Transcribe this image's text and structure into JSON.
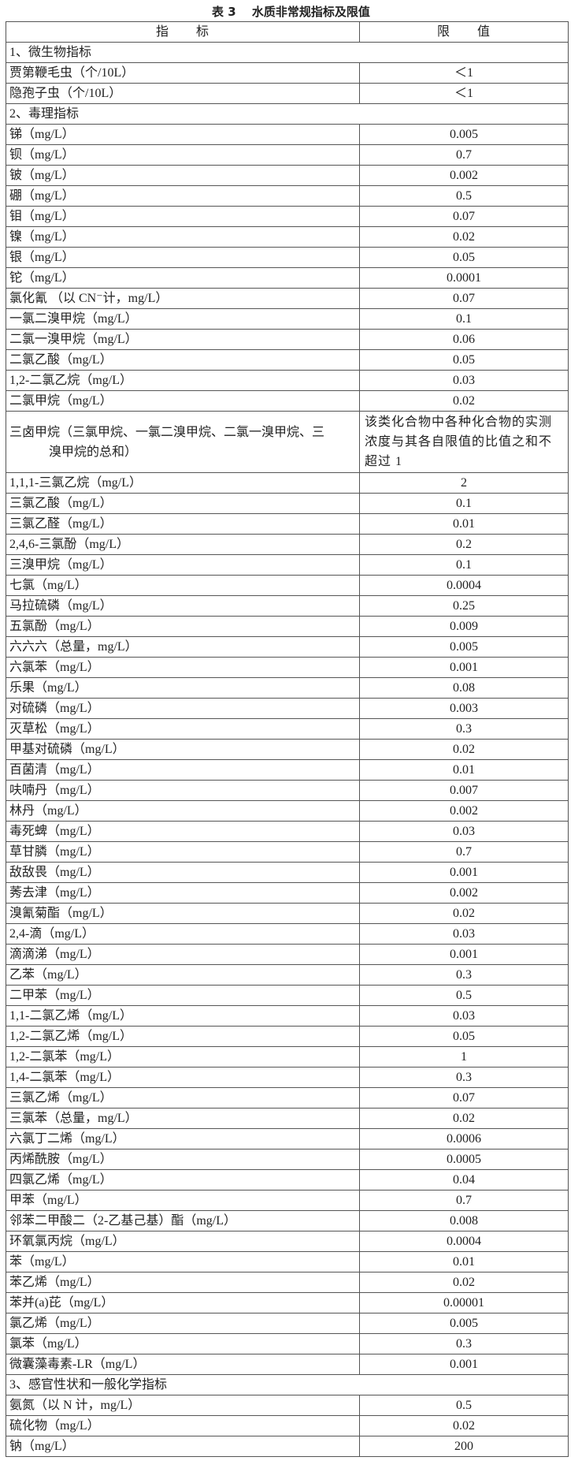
{
  "title": "表 3　 水质非常规指标及限值",
  "header": {
    "indicator": "指　　标",
    "limit": "限　　值"
  },
  "rows": [
    {
      "section": "1、微生物指标"
    },
    {
      "name": "贾第鞭毛虫（个/10L）",
      "value": "＜1"
    },
    {
      "name": "隐孢子虫（个/10L）",
      "value": "＜1"
    },
    {
      "section": "2、毒理指标"
    },
    {
      "name": "锑（mg/L）",
      "value": "0.005"
    },
    {
      "name": "钡（mg/L）",
      "value": "0.7"
    },
    {
      "name": "铍（mg/L）",
      "value": "0.002"
    },
    {
      "name": "硼（mg/L）",
      "value": "0.5"
    },
    {
      "name": "钼（mg/L）",
      "value": "0.07"
    },
    {
      "name": "镍（mg/L）",
      "value": "0.02"
    },
    {
      "name": "银（mg/L）",
      "value": "0.05"
    },
    {
      "name": "铊（mg/L）",
      "value": "0.0001"
    },
    {
      "name": "氯化氰 （以 CN⁻计，mg/L）",
      "value": "0.07"
    },
    {
      "name": "一氯二溴甲烷（mg/L）",
      "value": "0.1"
    },
    {
      "name": "二氯一溴甲烷（mg/L）",
      "value": "0.06"
    },
    {
      "name": "二氯乙酸（mg/L）",
      "value": "0.05"
    },
    {
      "name": "1,2-二氯乙烷（mg/L）",
      "value": "0.03"
    },
    {
      "name": "二氯甲烷（mg/L）",
      "value": "0.02"
    },
    {
      "name": "三卤甲烷（三氯甲烷、一氯二溴甲烷、二氯一溴甲烷、三",
      "name2": "溴甲烷的总和）",
      "value": "该类化合物中各种化合物的实测浓度与其各自限值的比值之和不超过 1"
    },
    {
      "name": "1,1,1-三氯乙烷（mg/L）",
      "value": "2"
    },
    {
      "name": "三氯乙酸（mg/L）",
      "value": "0.1"
    },
    {
      "name": "三氯乙醛（mg/L）",
      "value": "0.01"
    },
    {
      "name": "2,4,6-三氯酚（mg/L）",
      "value": "0.2"
    },
    {
      "name": "三溴甲烷（mg/L）",
      "value": "0.1"
    },
    {
      "name": "七氯（mg/L）",
      "value": "0.0004"
    },
    {
      "name": "马拉硫磷（mg/L）",
      "value": "0.25"
    },
    {
      "name": "五氯酚（mg/L）",
      "value": "0.009"
    },
    {
      "name": "六六六（总量，mg/L）",
      "value": "0.005"
    },
    {
      "name": "六氯苯（mg/L）",
      "value": "0.001"
    },
    {
      "name": "乐果（mg/L）",
      "value": "0.08"
    },
    {
      "name": "对硫磷（mg/L）",
      "value": "0.003"
    },
    {
      "name": "灭草松（mg/L）",
      "value": "0.3"
    },
    {
      "name": "甲基对硫磷（mg/L）",
      "value": "0.02"
    },
    {
      "name": "百菌清（mg/L）",
      "value": "0.01"
    },
    {
      "name": "呋喃丹（mg/L）",
      "value": "0.007"
    },
    {
      "name": "林丹（mg/L）",
      "value": "0.002"
    },
    {
      "name": "毒死蜱（mg/L）",
      "value": "0.03"
    },
    {
      "name": "草甘膦（mg/L）",
      "value": "0.7"
    },
    {
      "name": "敌敌畏（mg/L）",
      "value": "0.001"
    },
    {
      "name": "莠去津（mg/L）",
      "value": "0.002"
    },
    {
      "name": "溴氰菊酯（mg/L）",
      "value": "0.02"
    },
    {
      "name": "2,4-滴（mg/L）",
      "value": "0.03"
    },
    {
      "name": "滴滴涕（mg/L）",
      "value": "0.001"
    },
    {
      "name": "乙苯（mg/L）",
      "value": "0.3"
    },
    {
      "name": "二甲苯（mg/L）",
      "value": "0.5"
    },
    {
      "name": "1,1-二氯乙烯（mg/L）",
      "value": "0.03"
    },
    {
      "name": "1,2-二氯乙烯（mg/L）",
      "value": "0.05"
    },
    {
      "name": "1,2-二氯苯（mg/L）",
      "value": "1"
    },
    {
      "name": "1,4-二氯苯（mg/L）",
      "value": "0.3"
    },
    {
      "name": "三氯乙烯（mg/L）",
      "value": "0.07"
    },
    {
      "name": "三氯苯（总量，mg/L）",
      "value": "0.02"
    },
    {
      "name": "六氯丁二烯（mg/L）",
      "value": "0.0006"
    },
    {
      "name": "丙烯酰胺（mg/L）",
      "value": "0.0005"
    },
    {
      "name": "四氯乙烯（mg/L）",
      "value": "0.04"
    },
    {
      "name": "甲苯（mg/L）",
      "value": "0.7"
    },
    {
      "name": "邻苯二甲酸二（2-乙基己基）酯（mg/L）",
      "value": "0.008"
    },
    {
      "name": "环氧氯丙烷（mg/L）",
      "value": "0.0004"
    },
    {
      "name": "苯（mg/L）",
      "value": "0.01"
    },
    {
      "name": "苯乙烯（mg/L）",
      "value": "0.02"
    },
    {
      "name": "苯并(a)芘（mg/L）",
      "value": "0.00001"
    },
    {
      "name": "氯乙烯（mg/L）",
      "value": "0.005"
    },
    {
      "name": "氯苯（mg/L）",
      "value": "0.3"
    },
    {
      "name": "微囊藻毒素-LR（mg/L）",
      "value": "0.001"
    },
    {
      "section": "3、感官性状和一般化学指标"
    },
    {
      "name": "氨氮（以 N 计，mg/L）",
      "value": "0.5"
    },
    {
      "name": "硫化物（mg/L）",
      "value": "0.02"
    },
    {
      "name": "钠（mg/L）",
      "value": "200"
    }
  ]
}
